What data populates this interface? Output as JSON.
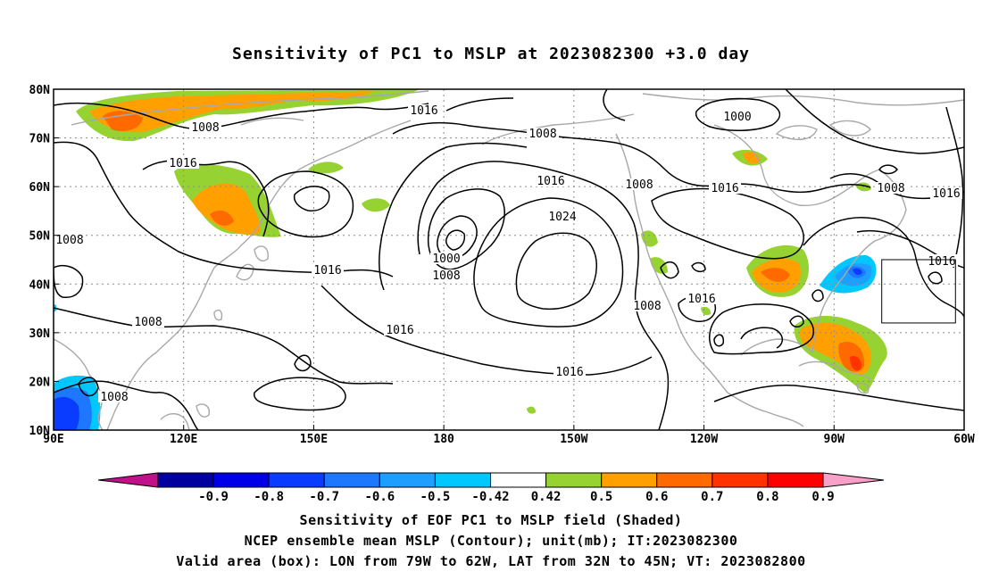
{
  "title": "Sensitivity of PC1 to MSLP at 2023082300 +3.0 day",
  "map": {
    "lon_range": [
      90,
      300
    ],
    "lat_range": [
      10,
      80
    ],
    "x_ticks": [
      "90E",
      "120E",
      "150E",
      "180",
      "150W",
      "120W",
      "90W",
      "60W"
    ],
    "y_ticks": [
      "80N",
      "70N",
      "60N",
      "50N",
      "40N",
      "30N",
      "20N",
      "10N"
    ],
    "contour_labels": [
      "1016",
      "1008",
      "1016",
      "1008",
      "1008",
      "1016",
      "1008",
      "1000",
      "1008",
      "1016",
      "1016",
      "1024",
      "1008",
      "1016",
      "1016",
      "1016",
      "1008",
      "1016",
      "1000",
      "1008",
      "1016",
      "1008",
      "1016"
    ],
    "valid_box": {
      "lon": [
        281,
        298
      ],
      "lat": [
        32,
        45
      ]
    }
  },
  "colorbar": {
    "labels": [
      "-0.9",
      "-0.8",
      "-0.7",
      "-0.6",
      "-0.5",
      "-0.42",
      "0.42",
      "0.5",
      "0.6",
      "0.7",
      "0.8",
      "0.9"
    ],
    "colors": [
      "#0000a0",
      "#0000e6",
      "#0a3cff",
      "#1e78ff",
      "#1e9eff",
      "#00c8ff",
      "#ffffff",
      "#96d232",
      "#ffa000",
      "#ff6a00",
      "#ff3200",
      "#ff0000"
    ],
    "low_end": "#c0108a",
    "high_end": "#f8a0c8"
  },
  "captions": {
    "line1": "Sensitivity of EOF PC1 to MSLP field (Shaded)",
    "line2": "NCEP ensemble mean MSLP (Contour); unit(mb); IT:2023082300",
    "line3": "Valid area (box): LON from 79W to 62W, LAT from 32N to 45N; VT: 2023082800"
  },
  "colors": {
    "contour": "#000000",
    "coast": "#a8a8a8",
    "grid": "#8c8c8c",
    "box": "#000000"
  }
}
